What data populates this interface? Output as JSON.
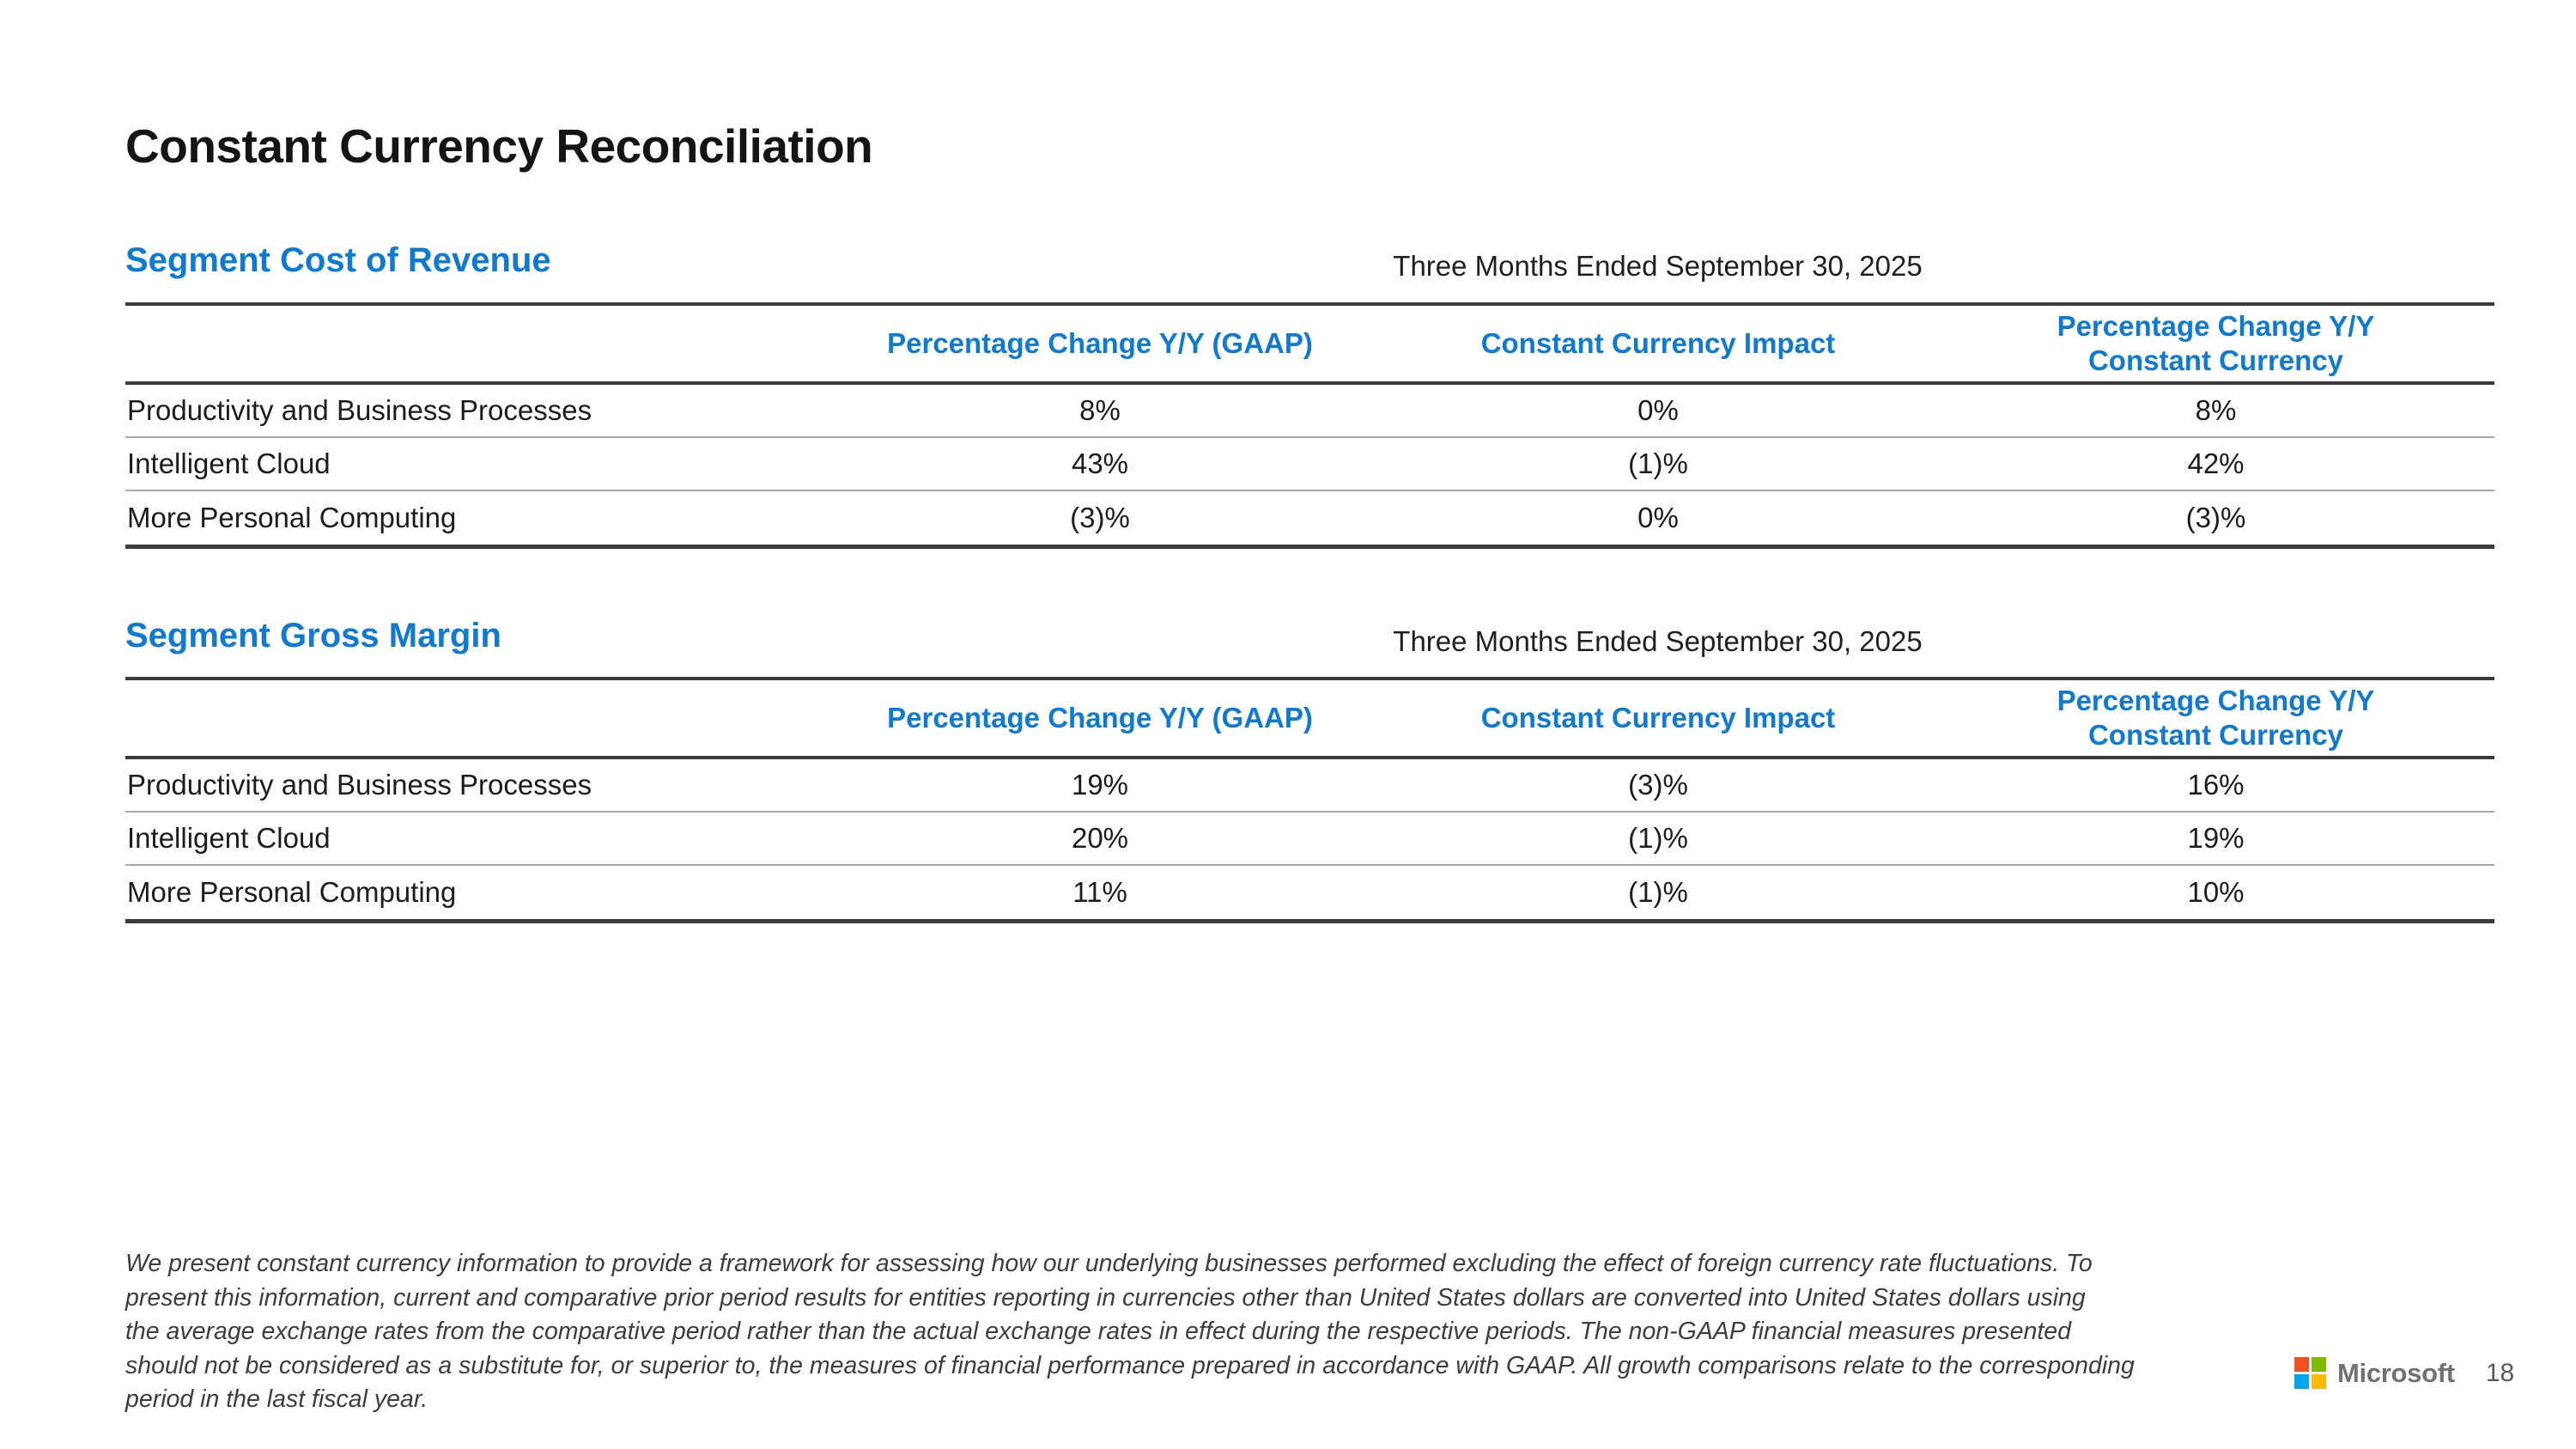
{
  "slide": {
    "title": "Constant Currency Reconciliation",
    "sections": [
      {
        "heading": "Segment Cost of Revenue",
        "period": "Three Months Ended September 30, 2025",
        "columns": {
          "gaap": "Percentage Change Y/Y (GAAP)",
          "impact": "Constant Currency Impact",
          "cc_line1": "Percentage Change Y/Y",
          "cc_line2": "Constant Currency"
        },
        "rows": [
          {
            "label": "Productivity and Business Processes",
            "gaap": "8%",
            "impact": "0%",
            "cc": "8%"
          },
          {
            "label": "Intelligent Cloud",
            "gaap": "43%",
            "impact": "(1)%",
            "cc": "42%"
          },
          {
            "label": "More Personal Computing",
            "gaap": "(3)%",
            "impact": "0%",
            "cc": "(3)%"
          }
        ]
      },
      {
        "heading": "Segment Gross Margin",
        "period": "Three Months Ended September 30, 2025",
        "columns": {
          "gaap": "Percentage Change Y/Y (GAAP)",
          "impact": "Constant Currency Impact",
          "cc_line1": "Percentage Change Y/Y",
          "cc_line2": "Constant Currency"
        },
        "rows": [
          {
            "label": "Productivity and Business Processes",
            "gaap": "19%",
            "impact": "(3)%",
            "cc": "16%"
          },
          {
            "label": "Intelligent Cloud",
            "gaap": "20%",
            "impact": "(1)%",
            "cc": "19%"
          },
          {
            "label": "More Personal Computing",
            "gaap": "11%",
            "impact": "(1)%",
            "cc": "10%"
          }
        ]
      }
    ],
    "footnote": {
      "lines": [
        "We present constant currency information to provide a framework for assessing how our underlying businesses performed excluding the effect of foreign currency rate fluctuations. To",
        "present this information, current and comparative prior period results for entities reporting in currencies other than United States dollars are converted into United States dollars using",
        "the average exchange rates from the comparative period rather than the actual exchange rates in effect during the respective periods. The non-GAAP financial measures presented",
        "should not be considered as a substitute for, or superior to, the measures of financial performance prepared in accordance with GAAP. All growth comparisons relate to the corresponding",
        "period in the last fiscal year."
      ]
    },
    "footer": {
      "logo_text": "Microsoft",
      "page_number": "18"
    },
    "colors": {
      "accent_blue": "#0f7ad2",
      "body_text": "#1c1c1c",
      "footnote_text": "#3d3d3d",
      "table_border_dark": "#3c3c3c",
      "row_divider": "#a8a8a8",
      "ms_logo_red": "#f25022",
      "ms_logo_green": "#7fba00",
      "ms_logo_blue": "#00a4ef",
      "ms_logo_yellow": "#ffb900",
      "ms_wordmark_gray": "#717171",
      "page_number_gray": "#595959"
    }
  },
  "chart_data": [
    {
      "type": "table",
      "title": "Segment Cost of Revenue — Three Months Ended September 30, 2025",
      "categories": [
        "Productivity and Business Processes",
        "Intelligent Cloud",
        "More Personal Computing"
      ],
      "series": [
        {
          "name": "Percentage Change Y/Y (GAAP)",
          "values": [
            "8%",
            "43%",
            "(3)%"
          ]
        },
        {
          "name": "Constant Currency Impact",
          "values": [
            "0%",
            "(1)%",
            "0%"
          ]
        },
        {
          "name": "Percentage Change Y/Y Constant Currency",
          "values": [
            "8%",
            "42%",
            "(3)%"
          ]
        }
      ]
    },
    {
      "type": "table",
      "title": "Segment Gross Margin — Three Months Ended September 30, 2025",
      "categories": [
        "Productivity and Business Processes",
        "Intelligent Cloud",
        "More Personal Computing"
      ],
      "series": [
        {
          "name": "Percentage Change Y/Y (GAAP)",
          "values": [
            "19%",
            "20%",
            "11%"
          ]
        },
        {
          "name": "Constant Currency Impact",
          "values": [
            "(3)%",
            "(1)%",
            "(1)%"
          ]
        },
        {
          "name": "Percentage Change Y/Y Constant Currency",
          "values": [
            "16%",
            "19%",
            "10%"
          ]
        }
      ]
    }
  ]
}
